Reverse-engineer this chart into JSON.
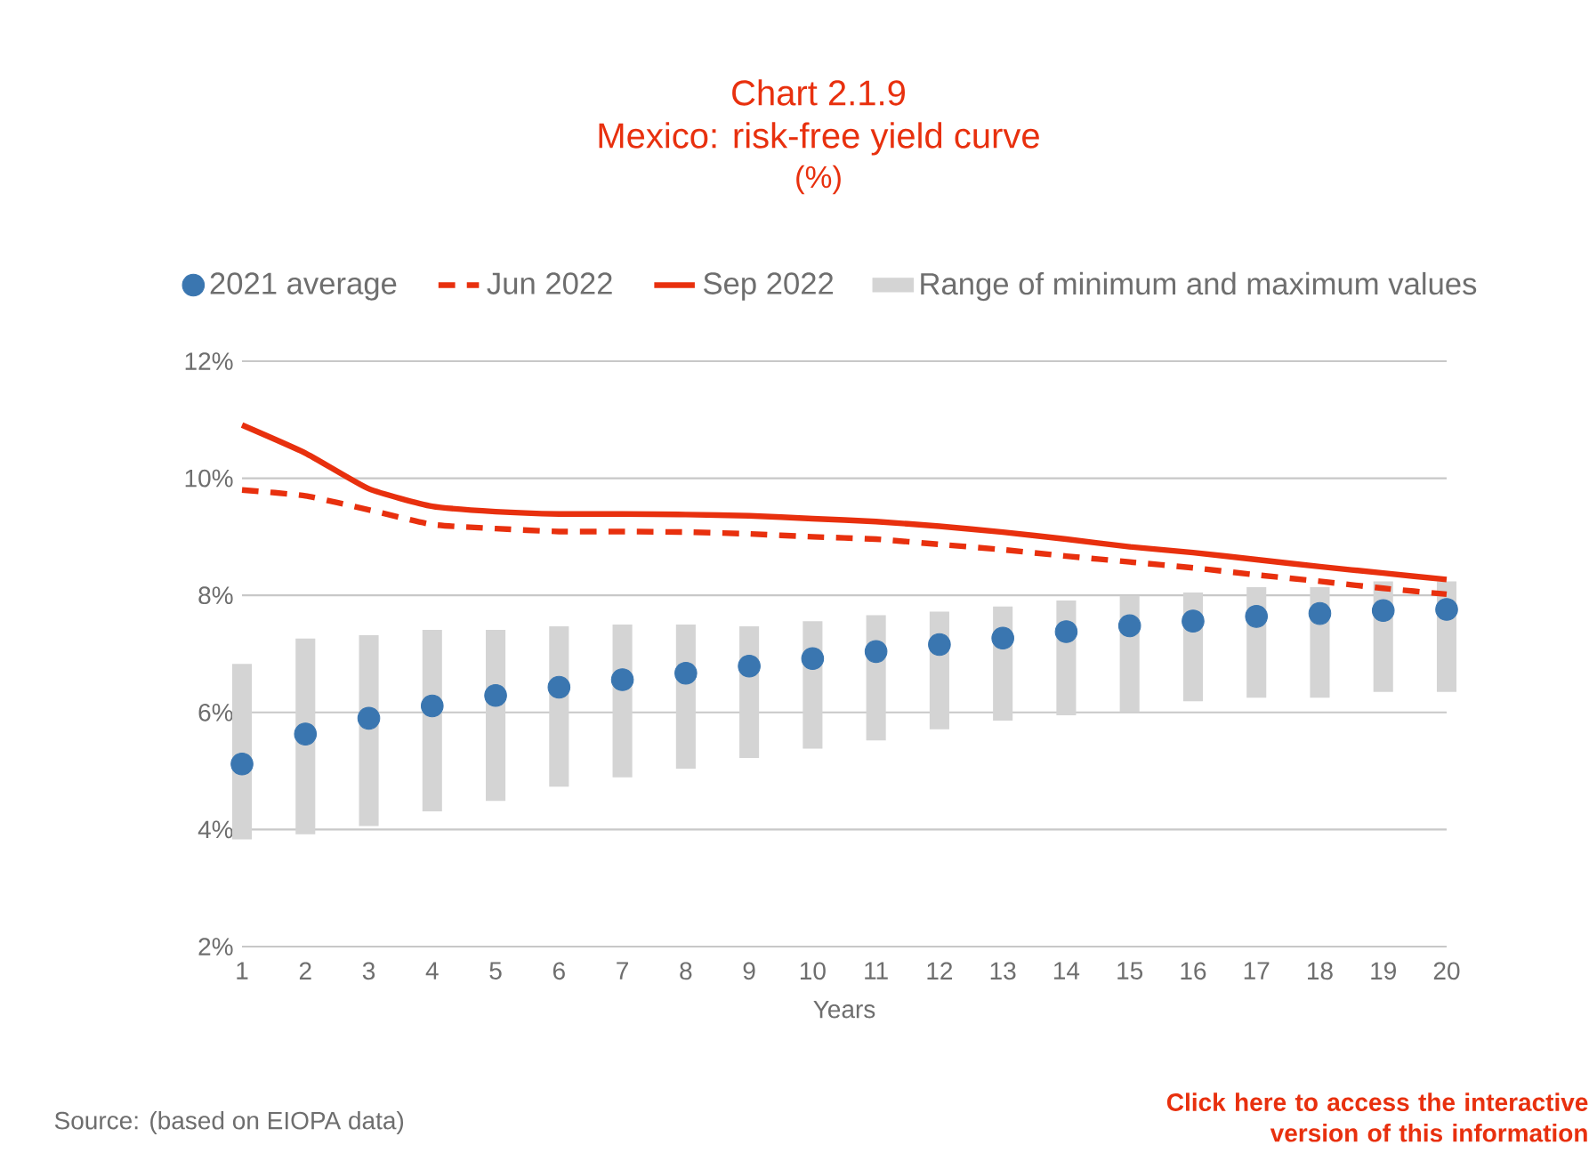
{
  "chart_data": {
    "type": "line",
    "title": "Chart 2.1.9",
    "subtitle": "Mexico: risk-free yield curve",
    "xlabel": "Years",
    "annotations": [
      "(%)",
      "Source: (based on EIOPA data)",
      "Click here to access the interactive version of this information"
    ],
    "x": [
      1,
      2,
      3,
      4,
      5,
      6,
      7,
      8,
      9,
      10,
      11,
      12,
      13,
      14,
      15,
      16,
      17,
      18,
      19,
      20
    ],
    "xlim": [
      1,
      20
    ],
    "xticks": [
      1,
      2,
      3,
      4,
      5,
      6,
      7,
      8,
      9,
      10,
      11,
      12,
      13,
      14,
      15,
      16,
      17,
      18,
      19,
      20
    ],
    "ylim": [
      2,
      12
    ],
    "yticks": [
      {
        "value": 2,
        "label": "2%"
      },
      {
        "value": 4,
        "label": "4%"
      },
      {
        "value": 6,
        "label": "6%"
      },
      {
        "value": 8,
        "label": "8%"
      },
      {
        "value": 10,
        "label": "10%"
      },
      {
        "value": 12,
        "label": "12%"
      }
    ],
    "grid": "y",
    "legend": "top",
    "series": [
      {
        "name": "Range of minimum and maximum values",
        "type": "bar",
        "color": "#d4d4d4",
        "base": [
          3.83,
          3.92,
          4.06,
          4.31,
          4.49,
          4.73,
          4.89,
          5.04,
          5.22,
          5.38,
          5.52,
          5.71,
          5.86,
          5.95,
          6.01,
          6.19,
          6.25,
          6.25,
          6.35,
          6.35
        ],
        "values": [
          3.0,
          3.34,
          3.26,
          3.1,
          2.92,
          2.74,
          2.61,
          2.46,
          2.25,
          2.18,
          2.14,
          2.01,
          1.95,
          1.96,
          1.98,
          1.86,
          1.89,
          1.89,
          1.89,
          1.89
        ]
      },
      {
        "name": "2021 average",
        "type": "scatter",
        "color": "#3a76b0",
        "marker": "circle",
        "values": [
          5.12,
          5.63,
          5.9,
          6.11,
          6.29,
          6.43,
          6.56,
          6.67,
          6.79,
          6.92,
          7.04,
          7.16,
          7.27,
          7.38,
          7.48,
          7.56,
          7.64,
          7.69,
          7.74,
          7.76
        ]
      },
      {
        "name": "Jun 2022",
        "type": "line",
        "color": "#e8300e",
        "line_style": "dashed",
        "values": [
          9.8,
          9.7,
          9.46,
          9.21,
          9.14,
          9.09,
          9.09,
          9.08,
          9.05,
          9.0,
          8.96,
          8.87,
          8.78,
          8.67,
          8.57,
          8.47,
          8.35,
          8.24,
          8.12,
          8.02
        ]
      },
      {
        "name": "Sep 2022",
        "color": "#e8300e",
        "line_style": "solid",
        "values": [
          10.91,
          10.43,
          9.82,
          9.52,
          9.43,
          9.39,
          9.39,
          9.38,
          9.36,
          9.31,
          9.26,
          9.18,
          9.08,
          8.96,
          8.83,
          8.73,
          8.61,
          8.49,
          8.38,
          8.27
        ]
      }
    ]
  }
}
